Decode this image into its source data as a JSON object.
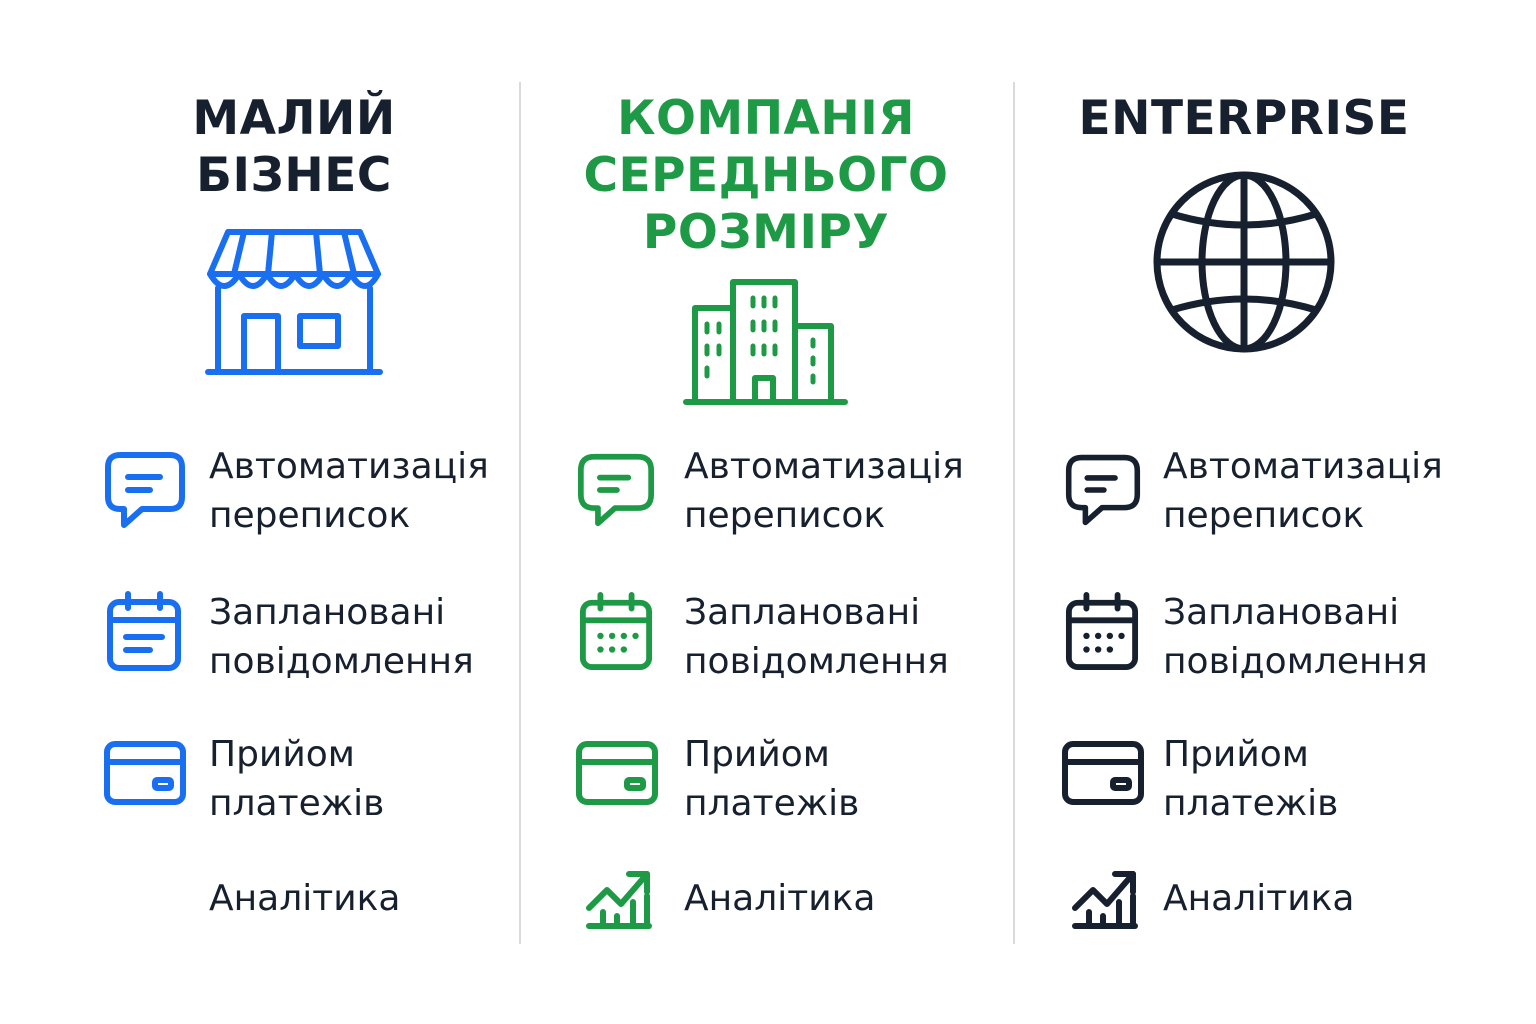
{
  "colors": {
    "blue": "#1a6ff0",
    "green": "#1e9a46",
    "navy": "#17202e",
    "divider": "#d9dadd"
  },
  "columns": [
    {
      "title_lines": [
        "МАЛИЙ",
        "БІЗНЕС"
      ],
      "hero_icon": "storefront-icon",
      "accent": "#1a6ff0",
      "features": [
        {
          "icon": "chat-bubble-icon",
          "lines": [
            "Автоматизація",
            "переписок"
          ]
        },
        {
          "icon": "calendar-icon",
          "lines": [
            "Заплановані",
            "повідомлення"
          ]
        },
        {
          "icon": "credit-card-icon",
          "lines": [
            "Прийом",
            "платежів"
          ]
        },
        {
          "icon": "",
          "lines": [
            "Аналітика"
          ]
        }
      ]
    },
    {
      "title_lines": [
        "КОМПАНІЯ",
        "СЕРЕДНЬОГО",
        "РОЗМІРУ"
      ],
      "hero_icon": "office-buildings-icon",
      "accent": "#1e9a46",
      "features": [
        {
          "icon": "chat-bubble-icon",
          "lines": [
            "Автоматизація",
            "переписок"
          ]
        },
        {
          "icon": "calendar-icon",
          "lines": [
            "Заплановані",
            "повідомлення"
          ]
        },
        {
          "icon": "credit-card-icon",
          "lines": [
            "Прийом",
            "платежів"
          ]
        },
        {
          "icon": "growth-chart-icon",
          "lines": [
            "Аналітика"
          ]
        }
      ]
    },
    {
      "title_lines": [
        "ENTERPRISE"
      ],
      "hero_icon": "globe-icon",
      "accent": "#17202e",
      "features": [
        {
          "icon": "chat-bubble-icon",
          "lines": [
            "Автоматизація",
            "переписок"
          ]
        },
        {
          "icon": "calendar-icon",
          "lines": [
            "Заплановані",
            "повідомлення"
          ]
        },
        {
          "icon": "credit-card-icon",
          "lines": [
            "Прийом",
            "платежів"
          ]
        },
        {
          "icon": "growth-chart-icon",
          "lines": [
            "Аналітика"
          ]
        }
      ]
    }
  ]
}
